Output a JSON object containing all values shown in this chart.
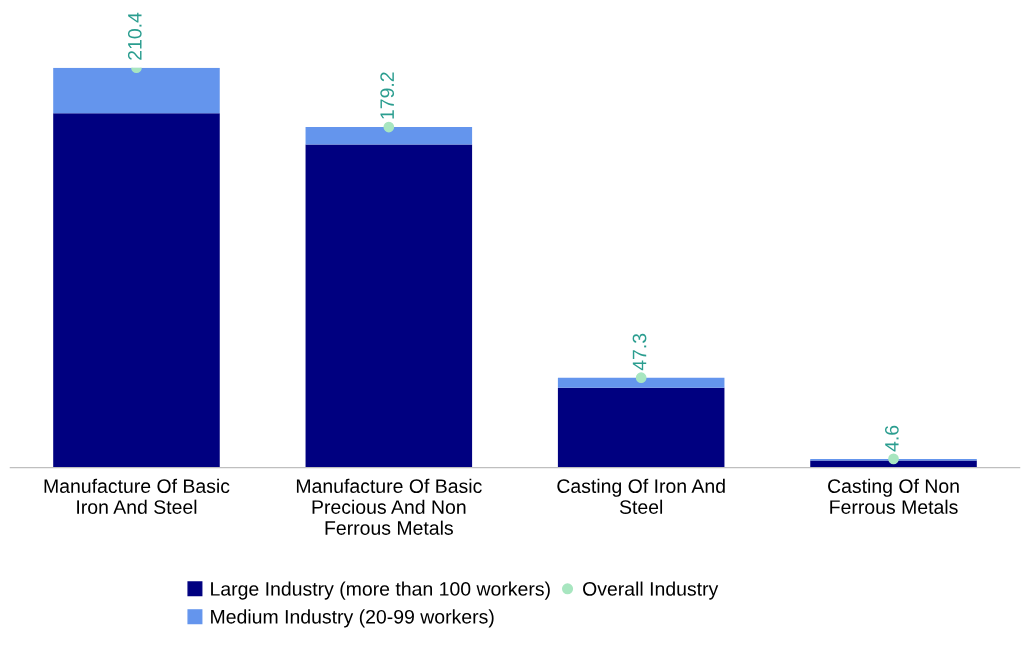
{
  "chart_data": {
    "type": "bar",
    "stacked": true,
    "categories": [
      "Manufacture Of Basic\nIron And Steel",
      "Manufacture Of Basic\nPrecious And Non\nFerrous Metals",
      "Casting Of Iron And\nSteel",
      "Casting Of Non\nFerrous Metals"
    ],
    "series": [
      {
        "name": "Large Industry (more than 100 workers)",
        "color": "#000080",
        "values": [
          186.4,
          170.0,
          42.0,
          3.8
        ]
      },
      {
        "name": "Medium Industry (20-99 workers)",
        "color": "#6495ed",
        "values": [
          24.0,
          9.2,
          5.3,
          0.8
        ]
      },
      {
        "name": "Overall Industry",
        "type": "scatter",
        "color": "#a8e6c0",
        "values": [
          210.4,
          179.2,
          47.3,
          4.6
        ],
        "value_labels": [
          "210.4",
          "179.2",
          "47.3",
          "4.6"
        ]
      }
    ],
    "tick_labels": "x",
    "legend": "bottom",
    "grid": false
  }
}
